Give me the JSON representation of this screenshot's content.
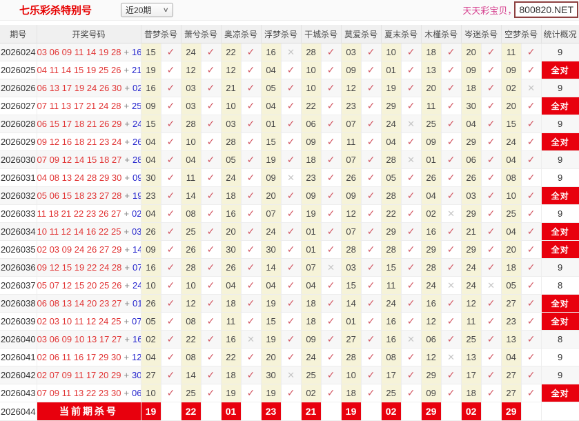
{
  "header": {
    "title": "七乐彩杀特别号",
    "range_selected": "近20期",
    "promo_text": "天天彩宝贝，天",
    "site_badge": "800820.NET"
  },
  "icons": {
    "check": "✓",
    "miss": "✕",
    "chevron": "∨"
  },
  "colors": {
    "accent_red": "#e8000d",
    "title_red": "#e60000",
    "draw_number_red": "#e13434",
    "special_number_blue": "#2525cd",
    "check_pink": "#d25561",
    "miss_gray": "#c6c6c6",
    "kill_cell_yellow": "#f6f3d8",
    "promo_pink": "#d6408f"
  },
  "table": {
    "columns": {
      "period": "期号",
      "numbers": "开奖号码",
      "stats": "统计概况"
    },
    "experts": [
      "昔梦杀号",
      "萧兮杀号",
      "奥凉杀号",
      "浮梦杀号",
      "干城杀号",
      "莫爱杀号",
      "夏末杀号",
      "木槿杀号",
      "岑迷杀号",
      "空梦杀号"
    ],
    "plus": "+",
    "all_correct_label": "全对",
    "rows": [
      {
        "period": "2026024",
        "numbers": "03 06 09 11 14 19 28",
        "special": "16",
        "kills": [
          "15",
          "24",
          "22",
          "16",
          "28",
          "03",
          "10",
          "18",
          "20",
          "11"
        ],
        "miss_idx": [
          3
        ],
        "stat": "9"
      },
      {
        "period": "2026025",
        "numbers": "04 11 14 15 19 25 26",
        "special": "21",
        "kills": [
          "19",
          "12",
          "12",
          "04",
          "10",
          "09",
          "01",
          "13",
          "09",
          "09"
        ],
        "miss_idx": [],
        "stat": "全对"
      },
      {
        "period": "2026026",
        "numbers": "06 13 17 19 24 26 30",
        "special": "02",
        "kills": [
          "16",
          "03",
          "21",
          "05",
          "10",
          "12",
          "19",
          "20",
          "18",
          "02"
        ],
        "miss_idx": [
          9
        ],
        "stat": "9"
      },
      {
        "period": "2026027",
        "numbers": "07 11 13 17 21 24 28",
        "special": "25",
        "kills": [
          "09",
          "03",
          "10",
          "04",
          "22",
          "23",
          "29",
          "11",
          "30",
          "20"
        ],
        "miss_idx": [],
        "stat": "全对"
      },
      {
        "period": "2026028",
        "numbers": "06 15 17 18 21 26 29",
        "special": "24",
        "kills": [
          "15",
          "28",
          "03",
          "01",
          "06",
          "07",
          "24",
          "25",
          "04",
          "15"
        ],
        "miss_idx": [
          6
        ],
        "stat": "9"
      },
      {
        "period": "2026029",
        "numbers": "09 12 16 18 21 23 24",
        "special": "26",
        "kills": [
          "04",
          "10",
          "28",
          "15",
          "09",
          "11",
          "04",
          "09",
          "29",
          "24"
        ],
        "miss_idx": [],
        "stat": "全对"
      },
      {
        "period": "2026030",
        "numbers": "07 09 12 14 15 18 27",
        "special": "28",
        "kills": [
          "04",
          "04",
          "05",
          "19",
          "18",
          "07",
          "28",
          "01",
          "06",
          "04"
        ],
        "miss_idx": [
          6
        ],
        "stat": "9"
      },
      {
        "period": "2026031",
        "numbers": "04 08 13 24 28 29 30",
        "special": "09",
        "kills": [
          "30",
          "11",
          "24",
          "09",
          "23",
          "26",
          "05",
          "26",
          "26",
          "08"
        ],
        "miss_idx": [
          3
        ],
        "stat": "9"
      },
      {
        "period": "2026032",
        "numbers": "05 06 15 18 23 27 28",
        "special": "19",
        "kills": [
          "23",
          "14",
          "18",
          "20",
          "09",
          "09",
          "28",
          "04",
          "03",
          "10"
        ],
        "miss_idx": [],
        "stat": "全对"
      },
      {
        "period": "2026033",
        "numbers": "11 18 21 22 23 26 27",
        "special": "02",
        "kills": [
          "04",
          "08",
          "16",
          "07",
          "19",
          "12",
          "22",
          "02",
          "29",
          "25"
        ],
        "miss_idx": [
          7
        ],
        "stat": "9"
      },
      {
        "period": "2026034",
        "numbers": "10 11 12 14 16 22 25",
        "special": "03",
        "kills": [
          "26",
          "25",
          "20",
          "24",
          "01",
          "07",
          "29",
          "16",
          "21",
          "04"
        ],
        "miss_idx": [],
        "stat": "全对"
      },
      {
        "period": "2026035",
        "numbers": "02 03 09 24 26 27 29",
        "special": "14",
        "kills": [
          "09",
          "26",
          "30",
          "30",
          "01",
          "28",
          "28",
          "29",
          "29",
          "20"
        ],
        "miss_idx": [],
        "stat": "全对"
      },
      {
        "period": "2026036",
        "numbers": "09 12 15 19 22 24 28",
        "special": "07",
        "kills": [
          "16",
          "28",
          "26",
          "14",
          "07",
          "03",
          "15",
          "28",
          "24",
          "18"
        ],
        "miss_idx": [
          4
        ],
        "stat": "9"
      },
      {
        "period": "2026037",
        "numbers": "05 07 12 15 20 25 26",
        "special": "24",
        "kills": [
          "10",
          "10",
          "04",
          "04",
          "04",
          "15",
          "11",
          "24",
          "24",
          "05"
        ],
        "miss_idx": [
          7,
          8
        ],
        "stat": "8"
      },
      {
        "period": "2026038",
        "numbers": "06 08 13 14 20 23 27",
        "special": "01",
        "kills": [
          "26",
          "12",
          "18",
          "19",
          "18",
          "14",
          "24",
          "16",
          "12",
          "27"
        ],
        "miss_idx": [],
        "stat": "全对"
      },
      {
        "period": "2026039",
        "numbers": "02 03 10 11 12 24 25",
        "special": "07",
        "kills": [
          "05",
          "08",
          "11",
          "15",
          "18",
          "01",
          "16",
          "12",
          "11",
          "23"
        ],
        "miss_idx": [],
        "stat": "全对"
      },
      {
        "period": "2026040",
        "numbers": "03 06 09 10 13 17 27",
        "special": "16",
        "kills": [
          "02",
          "22",
          "16",
          "19",
          "09",
          "27",
          "16",
          "06",
          "25",
          "13"
        ],
        "miss_idx": [
          2,
          6
        ],
        "stat": "8"
      },
      {
        "period": "2026041",
        "numbers": "02 06 11 16 17 29 30",
        "special": "12",
        "kills": [
          "04",
          "08",
          "22",
          "20",
          "24",
          "28",
          "08",
          "12",
          "13",
          "04"
        ],
        "miss_idx": [
          7
        ],
        "stat": "9"
      },
      {
        "period": "2026042",
        "numbers": "02 07 09 11 17 20 29",
        "special": "30",
        "kills": [
          "27",
          "14",
          "18",
          "30",
          "25",
          "10",
          "17",
          "29",
          "17",
          "27"
        ],
        "miss_idx": [
          3
        ],
        "stat": "9"
      },
      {
        "period": "2026043",
        "numbers": "07 09 11 13 22 23 30",
        "special": "06",
        "kills": [
          "10",
          "25",
          "19",
          "19",
          "02",
          "18",
          "25",
          "09",
          "18",
          "27"
        ],
        "miss_idx": [],
        "stat": "全对"
      }
    ],
    "current_row": {
      "period": "2026044",
      "banner": "当前期杀号",
      "kills": [
        "19",
        "22",
        "01",
        "23",
        "21",
        "19",
        "02",
        "29",
        "02",
        "29"
      ],
      "stat": ""
    }
  }
}
